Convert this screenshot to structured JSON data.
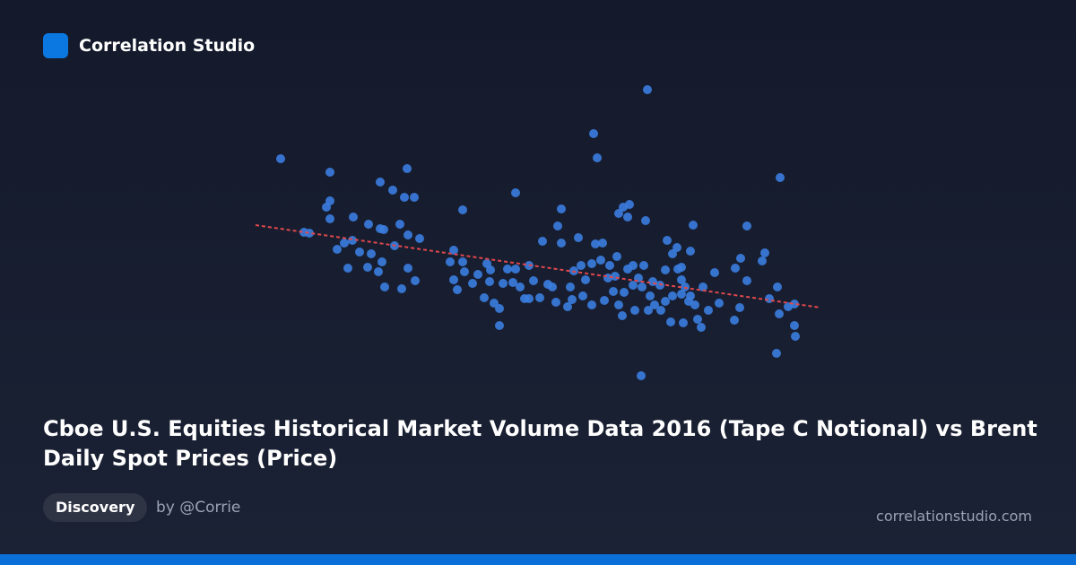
{
  "header": {
    "brand": "Correlation Studio"
  },
  "footer": {
    "tag": "Discovery",
    "author": "by @Corrie",
    "site": "correlationstudio.com"
  },
  "chart_data": {
    "type": "scatter",
    "title": "Cboe U.S. Equities Historical Market Volume Data 2016 (Tape C Notional) vs Brent Daily Spot Prices (Price)",
    "color": "#3b7de0",
    "xlim": [
      280,
      920
    ],
    "ylim": [
      200,
      550
    ],
    "x": [
      313,
      368,
      424,
      454,
      438,
      451,
      462,
      368,
      364,
      368,
      339,
      345,
      394,
      411,
      424,
      428,
      446,
      455,
      468,
      384,
      376,
      393,
      401,
      414,
      440,
      388,
      410,
      426,
      422,
      429,
      448,
      463,
      455,
      516,
      575,
      506,
      502,
      516,
      506,
      510,
      518,
      527,
      533,
      543,
      546,
      540,
      551,
      557,
      557,
      561,
      566,
      575,
      572,
      580,
      590,
      595,
      590,
      602,
      605,
      622,
      626,
      626,
      611,
      620,
      633,
      640,
      645,
      648,
      653,
      660,
      664,
      670,
      672,
      662,
      666,
      690,
      695,
      702,
      700,
      720,
      722,
      678,
      684,
      690,
      694,
      700,
      706,
      712,
      716,
      718,
      725,
      730,
      736,
      742,
      744,
      750,
      755,
      756,
      760,
      764,
      770,
      773,
      770,
      775,
      778,
      782,
      784,
      790,
      797,
      802,
      819,
      820,
      826,
      825,
      833,
      833,
      853,
      850,
      858,
      867,
      870,
      869,
      879,
      886,
      886,
      887,
      866,
      715,
      748,
      762,
      737,
      723,
      708,
      660,
      650,
      636,
      616,
      750,
      760,
      768,
      742,
      706,
      696,
      686,
      674,
      760,
      728,
      680,
      688,
      638,
      585,
      547
    ],
    "values": [
      453,
      438,
      427,
      442,
      418,
      410,
      410,
      406,
      399,
      386,
      371,
      370,
      388,
      380,
      375,
      374,
      380,
      368,
      364,
      359,
      352,
      362,
      349,
      347,
      356,
      331,
      332,
      338,
      327,
      310,
      308,
      317,
      331,
      396,
      415,
      351,
      338,
      338,
      318,
      307,
      327,
      314,
      324,
      336,
      316,
      298,
      292,
      286,
      267,
      314,
      330,
      330,
      315,
      310,
      334,
      317,
      297,
      298,
      361,
      378,
      397,
      359,
      313,
      293,
      288,
      328,
      365,
      334,
      318,
      336,
      358,
      340,
      359,
      481,
      454,
      392,
      399,
      402,
      388,
      384,
      530,
      320,
      305,
      290,
      278,
      330,
      334,
      320,
      310,
      334,
      300,
      290,
      312,
      329,
      362,
      347,
      354,
      330,
      318,
      310,
      300,
      379,
      350,
      290,
      274,
      265,
      310,
      284,
      326,
      292,
      273,
      331,
      342,
      287,
      378,
      317,
      348,
      339,
      297,
      310,
      432,
      280,
      288,
      291,
      267,
      255,
      236,
      211,
      271,
      270,
      284,
      284,
      284,
      290,
      300,
      310,
      310,
      300,
      302,
      294,
      294,
      312,
      304,
      322,
      295,
      332,
      316,
      334,
      344,
      296,
      297,
      329
    ],
    "trendline": {
      "color": "#e0474c",
      "x": [
        285,
        915
      ],
      "y": [
        379,
        287
      ]
    }
  }
}
